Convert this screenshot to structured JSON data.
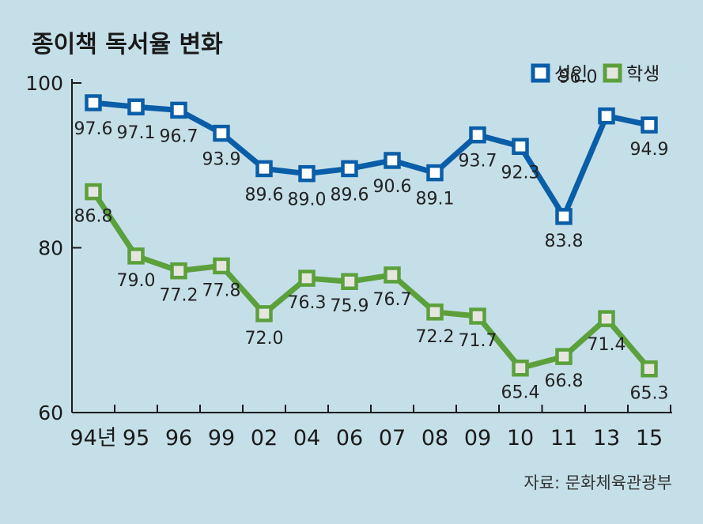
{
  "chart_data": {
    "type": "line",
    "title": "종이책 독서율 변화",
    "categories": [
      "94년",
      "95",
      "96",
      "99",
      "02",
      "04",
      "06",
      "07",
      "08",
      "09",
      "10",
      "11",
      "13",
      "15"
    ],
    "series": [
      {
        "name": "성인",
        "color": "#0a5ea8",
        "values": [
          97.6,
          97.1,
          96.7,
          93.9,
          89.6,
          89.0,
          89.6,
          90.6,
          89.1,
          93.7,
          92.3,
          83.8,
          96.0,
          94.9
        ],
        "labels": [
          "97.6",
          "97.1",
          "96.7",
          "93.9",
          "89.6",
          "89.0",
          "89.6",
          "90.6",
          "89.1",
          "93.7",
          "92.3",
          "83.8",
          "96.0",
          "94.9"
        ]
      },
      {
        "name": "학생",
        "color": "#5ca03c",
        "values": [
          86.8,
          79.0,
          77.2,
          77.8,
          72.0,
          76.3,
          75.9,
          76.7,
          72.2,
          71.7,
          65.4,
          66.8,
          71.4,
          65.3
        ],
        "labels": [
          "86.8",
          "79.0",
          "77.2",
          "77.8",
          "72.0",
          "76.3",
          "75.9",
          "76.7",
          "72.2",
          "71.7",
          "65.4",
          "66.8",
          "71.4",
          "65.3"
        ]
      }
    ],
    "ylim": [
      60,
      100
    ],
    "yticks": [
      "60",
      "80",
      "100"
    ],
    "legend_position": "top-right",
    "source": "자료: 문화체육관광부"
  }
}
